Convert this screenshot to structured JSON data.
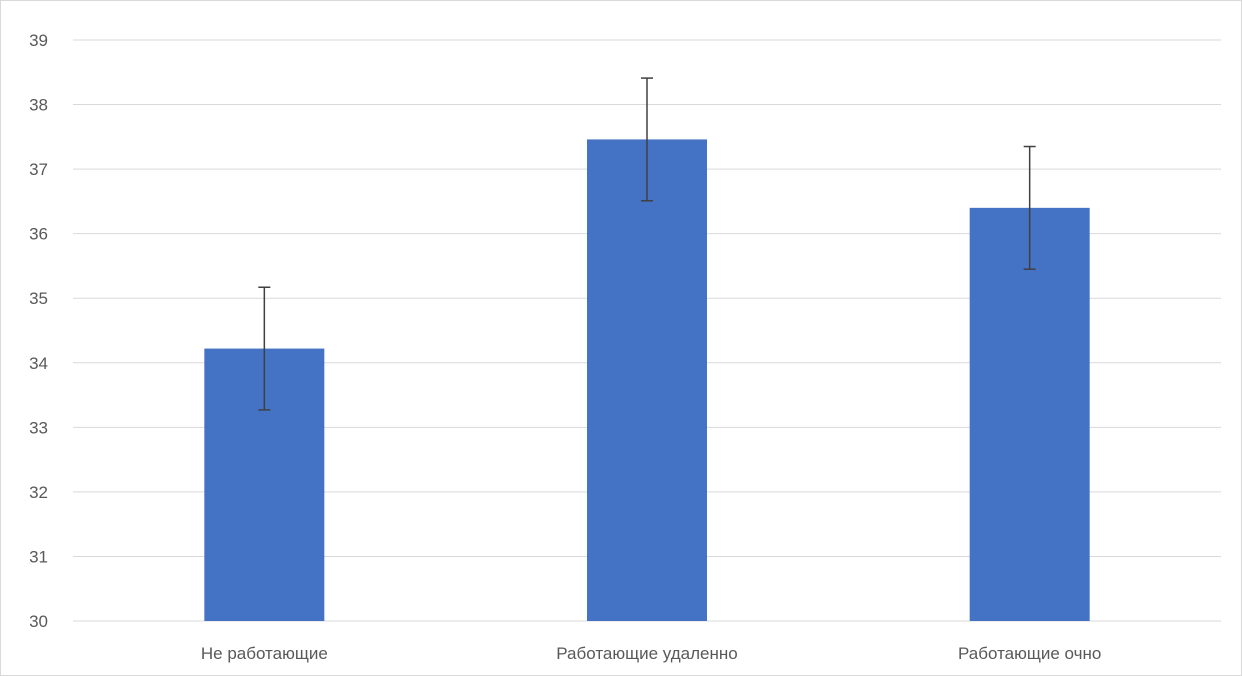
{
  "chart_data": {
    "type": "bar",
    "title": "",
    "xlabel": "",
    "ylabel": "",
    "categories": [
      "Не работающие",
      "Работающие удаленно",
      "Работающие очно"
    ],
    "series": [
      {
        "values": [
          34.22,
          37.46,
          36.4
        ],
        "error": [
          0.95,
          0.95,
          0.95
        ],
        "color": "#4472C4"
      }
    ],
    "ylim": [
      30,
      39
    ],
    "yticks": [
      "30",
      "31",
      "32",
      "33",
      "34",
      "35",
      "36",
      "37",
      "38",
      "39"
    ],
    "grid": true,
    "legend": "none",
    "gridline_color": "#d9d9d9",
    "errorbar_color": "#404040"
  }
}
